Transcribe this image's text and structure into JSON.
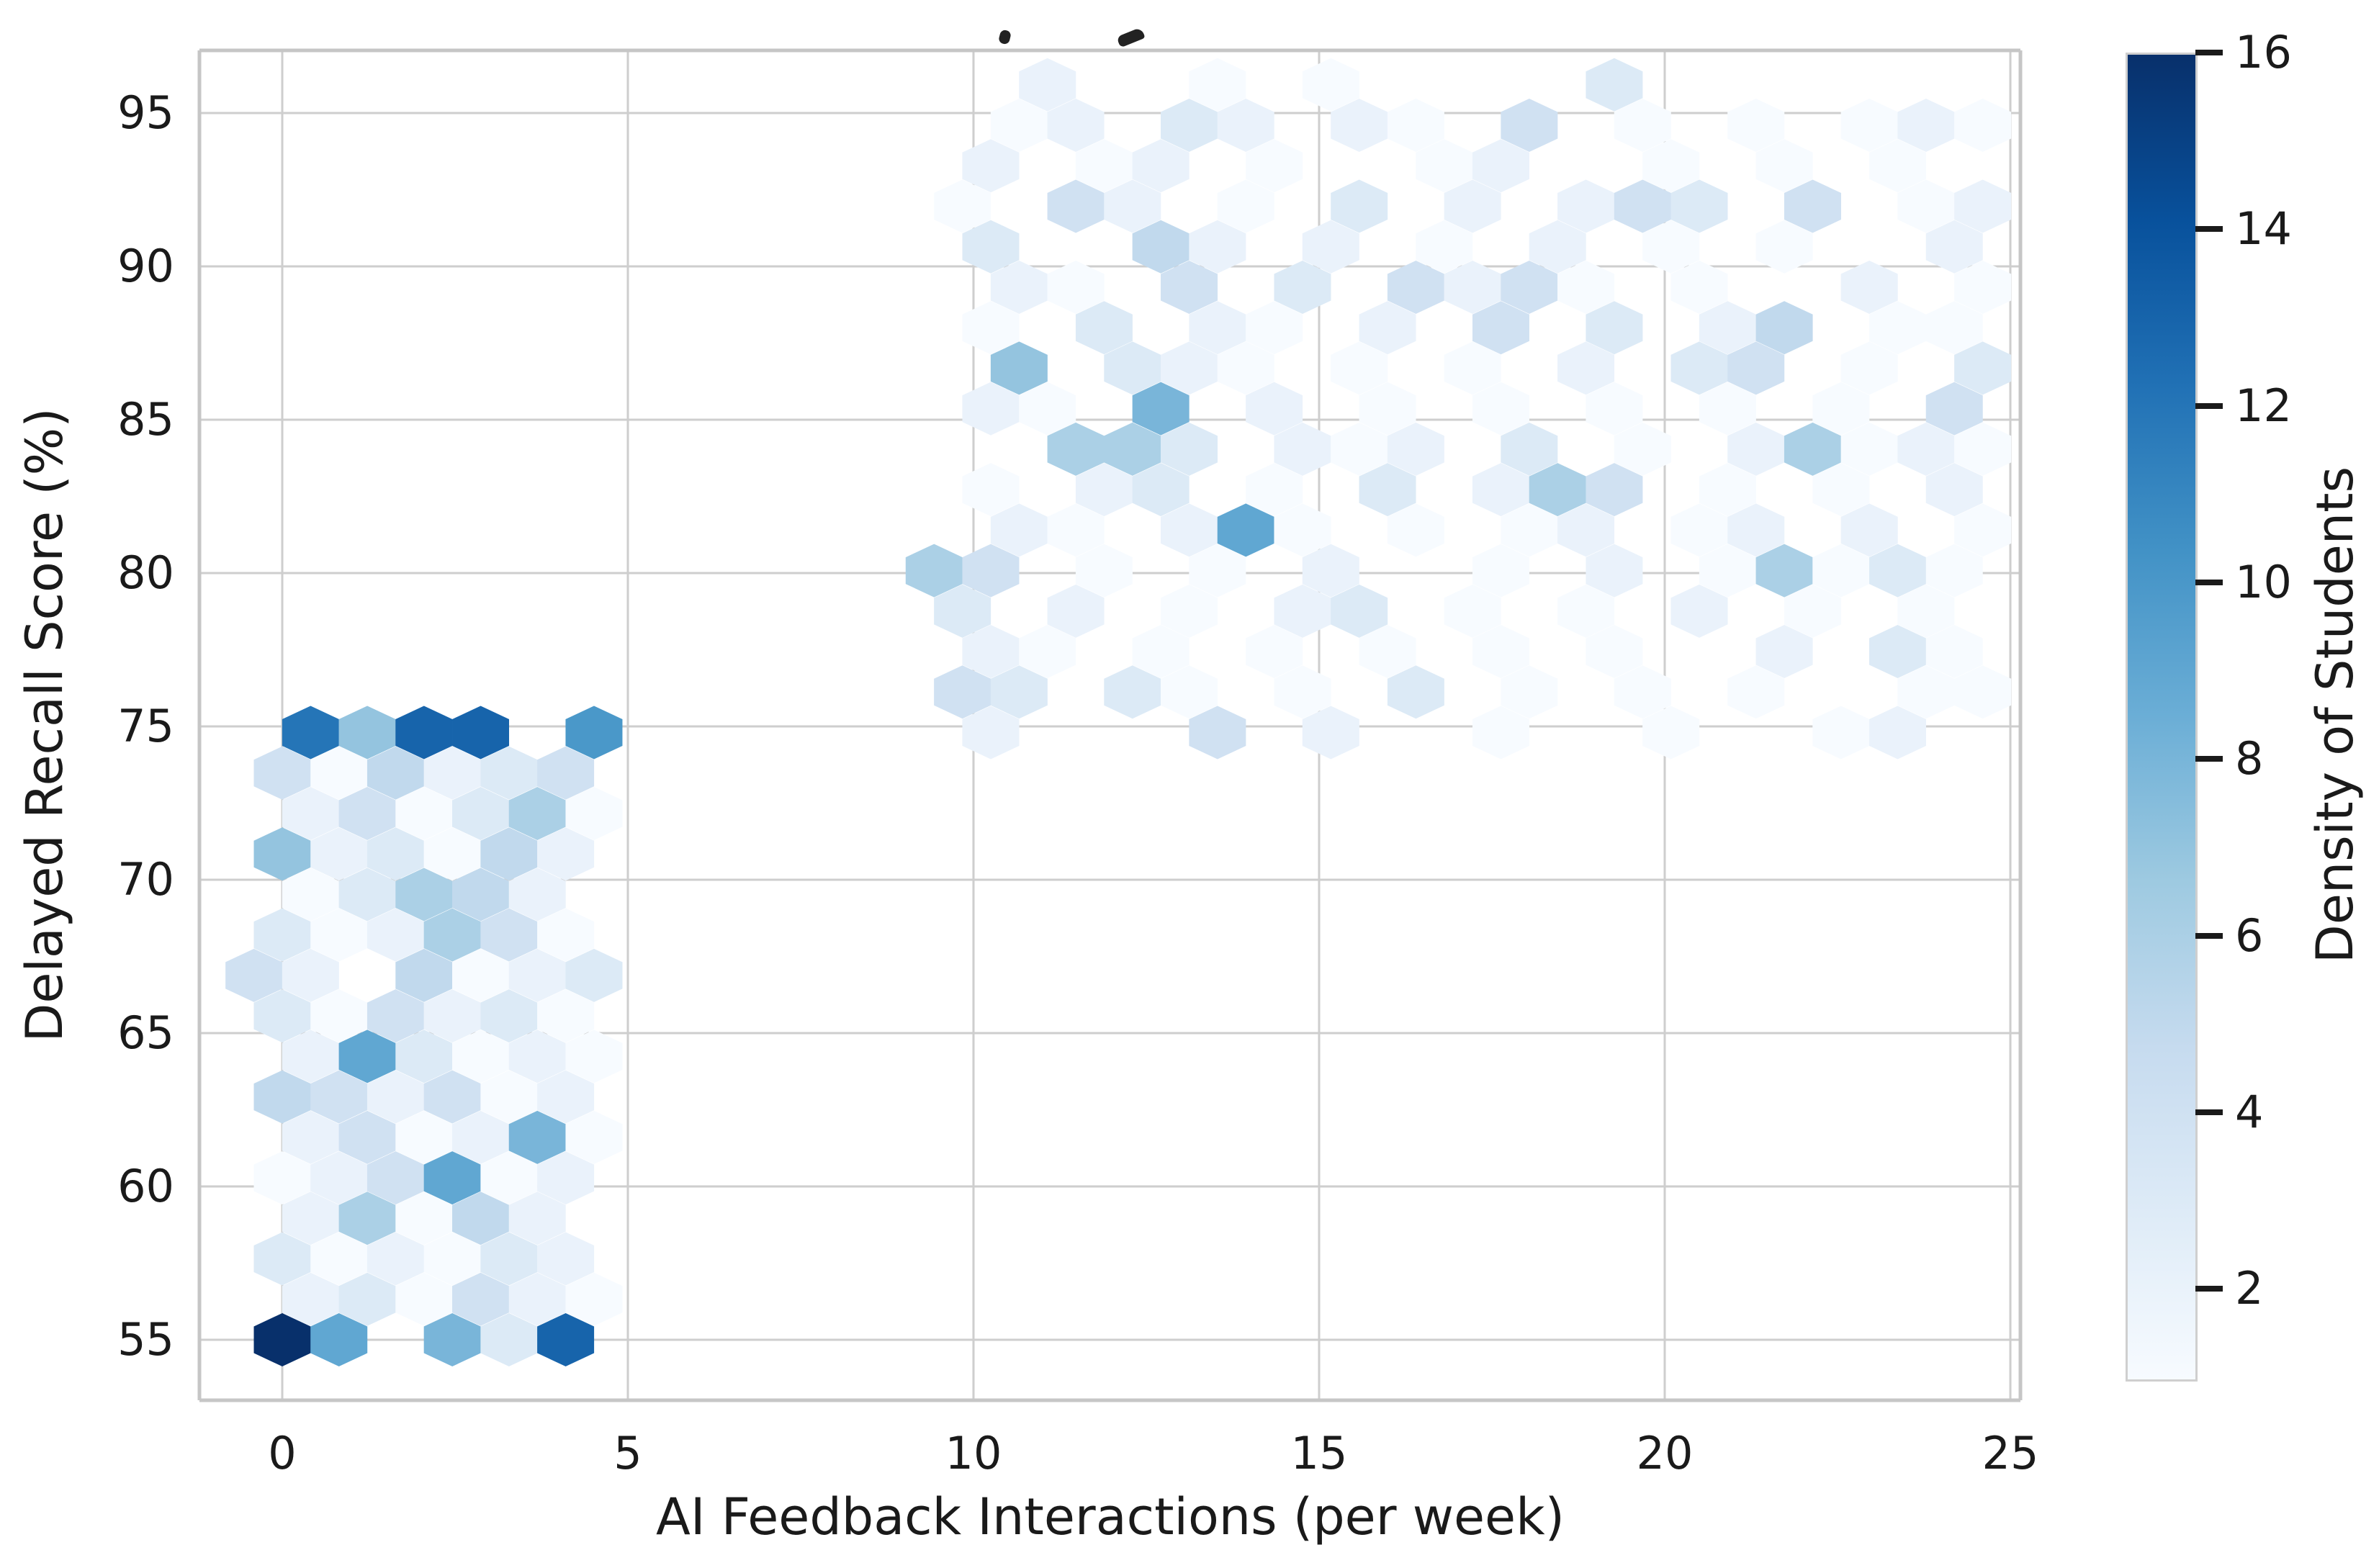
{
  "partial_title_visible": true,
  "chart_data": {
    "type": "hexbin",
    "title": "",
    "xlabel": "AI Feedback Interactions (per week)",
    "ylabel": "Delayed Recall Score (%)",
    "colorbar_label": "Density of Students",
    "x_ticks": [
      0,
      5,
      10,
      15,
      20,
      25
    ],
    "y_ticks": [
      55,
      60,
      65,
      70,
      75,
      80,
      85,
      90,
      95
    ],
    "xlim": [
      -1.2,
      25.3
    ],
    "ylim": [
      53.0,
      97.0
    ],
    "grid": true,
    "colorbar_ticks": [
      2,
      4,
      6,
      8,
      10,
      12,
      14,
      16
    ],
    "vmin": 1,
    "vmax": 16,
    "colormap": {
      "name": "Blues",
      "stops": [
        "#f7fbff",
        "#deebf7",
        "#c6dbef",
        "#9ecae1",
        "#6baed6",
        "#4292c6",
        "#2171b5",
        "#08519c",
        "#08306b"
      ]
    },
    "hex_dx": 0.82,
    "hex_dy": 1.32,
    "rows": [
      {
        "y": 55.0,
        "x0": 0.0,
        "counts": [
          16,
          9,
          0,
          8,
          3,
          13
        ]
      },
      {
        "y": 56.32,
        "x0": 0.41,
        "counts": [
          2,
          3,
          1,
          4,
          2,
          1
        ]
      },
      {
        "y": 57.64,
        "x0": 0.0,
        "counts": [
          3,
          1,
          2,
          1,
          3,
          2
        ]
      },
      {
        "y": 58.96,
        "x0": 0.41,
        "counts": [
          2,
          6,
          1,
          5,
          2
        ]
      },
      {
        "y": 60.28,
        "x0": 0.0,
        "counts": [
          1,
          2,
          4,
          9,
          1,
          2
        ]
      },
      {
        "y": 61.6,
        "x0": 0.41,
        "counts": [
          2,
          4,
          1,
          2,
          8,
          1
        ]
      },
      {
        "y": 62.92,
        "x0": 0.0,
        "counts": [
          5,
          4,
          2,
          4,
          1,
          2
        ]
      },
      {
        "y": 64.24,
        "x0": 0.41,
        "counts": [
          2,
          9,
          3,
          1,
          2,
          1
        ]
      },
      {
        "y": 65.56,
        "x0": 0.0,
        "counts": [
          3,
          1,
          4,
          2,
          3,
          1
        ]
      },
      {
        "y": 66.88,
        "x0": -0.41,
        "counts": [
          4,
          2,
          0,
          5,
          1,
          2,
          3
        ]
      },
      {
        "y": 68.2,
        "x0": 0.0,
        "counts": [
          3,
          1,
          2,
          6,
          4,
          1
        ]
      },
      {
        "y": 69.52,
        "x0": 0.41,
        "counts": [
          1,
          3,
          6,
          5,
          2
        ]
      },
      {
        "y": 70.84,
        "x0": 0.0,
        "counts": [
          7,
          2,
          3,
          1,
          5,
          2
        ]
      },
      {
        "y": 72.16,
        "x0": 0.41,
        "counts": [
          2,
          4,
          1,
          3,
          6,
          1
        ]
      },
      {
        "y": 73.48,
        "x0": 0.0,
        "counts": [
          4,
          1,
          5,
          2,
          3,
          4
        ]
      },
      {
        "y": 74.8,
        "x0": 0.41,
        "counts": [
          12,
          7,
          13,
          13,
          0,
          10
        ]
      },
      {
        "y": 74.8,
        "x0": 10.25,
        "counts": [
          2,
          0,
          0,
          0,
          4,
          0,
          2,
          0,
          0,
          1,
          0,
          0,
          1,
          0,
          0,
          1,
          2
        ]
      },
      {
        "y": 76.12,
        "x0": 9.84,
        "counts": [
          4,
          3,
          0,
          3,
          1,
          0,
          1,
          0,
          3,
          0,
          1,
          0,
          1,
          0,
          1,
          0,
          0,
          1,
          1
        ]
      },
      {
        "y": 77.44,
        "x0": 10.25,
        "counts": [
          2,
          1,
          0,
          1,
          0,
          1,
          0,
          1,
          0,
          1,
          0,
          1,
          0,
          0,
          2,
          0,
          3,
          1
        ]
      },
      {
        "y": 78.76,
        "x0": 9.84,
        "counts": [
          3,
          0,
          2,
          0,
          1,
          0,
          2,
          3,
          0,
          1,
          0,
          1,
          0,
          2,
          0,
          1,
          0,
          1
        ]
      },
      {
        "y": 80.08,
        "x0": 9.43,
        "counts": [
          6,
          4,
          0,
          1,
          0,
          1,
          0,
          2,
          0,
          0,
          1,
          0,
          2,
          0,
          1,
          6,
          1,
          3,
          1
        ]
      },
      {
        "y": 81.4,
        "x0": 9.84,
        "counts": [
          0,
          2,
          1,
          0,
          2,
          9,
          1,
          0,
          1,
          0,
          1,
          2,
          0,
          1,
          2,
          0,
          2,
          0,
          1
        ]
      },
      {
        "y": 82.72,
        "x0": 10.25,
        "counts": [
          1,
          0,
          2,
          3,
          0,
          1,
          0,
          3,
          0,
          2,
          6,
          4,
          0,
          1,
          0,
          1,
          0,
          2
        ]
      },
      {
        "y": 84.04,
        "x0": 9.84,
        "counts": [
          0,
          0,
          6,
          6,
          3,
          0,
          2,
          1,
          2,
          0,
          3,
          0,
          1,
          0,
          2,
          6,
          1,
          2,
          1
        ]
      },
      {
        "y": 85.36,
        "x0": 10.25,
        "counts": [
          2,
          1,
          0,
          8,
          0,
          2,
          0,
          1,
          0,
          1,
          0,
          1,
          0,
          1,
          0,
          1,
          0,
          4
        ]
      },
      {
        "y": 86.68,
        "x0": 9.84,
        "counts": [
          0,
          7,
          0,
          3,
          2,
          1,
          0,
          1,
          0,
          1,
          0,
          2,
          0,
          3,
          4,
          0,
          1,
          0,
          3
        ]
      },
      {
        "y": 88.0,
        "x0": 10.25,
        "counts": [
          1,
          0,
          3,
          0,
          2,
          1,
          0,
          2,
          0,
          4,
          0,
          3,
          0,
          2,
          5,
          0,
          1,
          1
        ]
      },
      {
        "y": 89.32,
        "x0": 9.84,
        "counts": [
          0,
          2,
          1,
          0,
          4,
          0,
          3,
          0,
          4,
          2,
          4,
          1,
          0,
          1,
          0,
          0,
          2,
          0,
          1
        ]
      },
      {
        "y": 90.64,
        "x0": 10.25,
        "counts": [
          3,
          0,
          0,
          5,
          2,
          0,
          2,
          0,
          1,
          0,
          2,
          0,
          1,
          0,
          1,
          0,
          0,
          2
        ]
      },
      {
        "y": 91.96,
        "x0": 9.84,
        "counts": [
          1,
          0,
          4,
          2,
          0,
          1,
          0,
          3,
          0,
          2,
          0,
          2,
          4,
          3,
          0,
          4,
          0,
          1,
          2
        ]
      },
      {
        "y": 93.28,
        "x0": 10.25,
        "counts": [
          2,
          0,
          1,
          2,
          0,
          1,
          0,
          0,
          1,
          2,
          0,
          0,
          1,
          0,
          1,
          0,
          1,
          0
        ]
      },
      {
        "y": 94.6,
        "x0": 9.84,
        "counts": [
          0,
          1,
          2,
          0,
          3,
          2,
          0,
          2,
          1,
          0,
          4,
          0,
          1,
          0,
          1,
          0,
          1,
          2,
          1
        ]
      },
      {
        "y": 95.92,
        "x0": 10.25,
        "counts": [
          0,
          2,
          0,
          0,
          1,
          0,
          1,
          0,
          0,
          0,
          0,
          3,
          0,
          0,
          0,
          0,
          0,
          0
        ]
      }
    ]
  }
}
